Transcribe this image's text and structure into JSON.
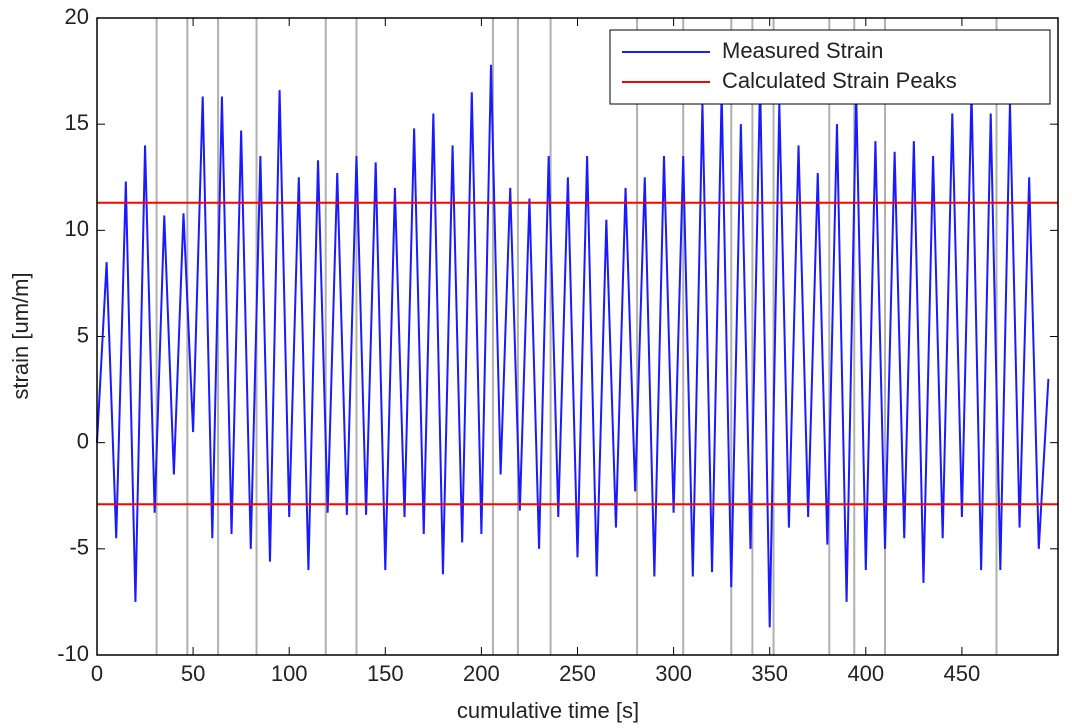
{
  "chart_data": {
    "type": "line",
    "xlabel": "cumulative time [s]",
    "ylabel": "strain [um/m]",
    "x": [
      0,
      5,
      10,
      15,
      20,
      25,
      30,
      35,
      40,
      45,
      50,
      55,
      60,
      65,
      70,
      75,
      80,
      85,
      90,
      95,
      100,
      105,
      110,
      115,
      120,
      125,
      130,
      135,
      140,
      145,
      150,
      155,
      160,
      165,
      170,
      175,
      180,
      185,
      190,
      195,
      200,
      205,
      210,
      215,
      220,
      225,
      230,
      235,
      240,
      245,
      250,
      255,
      260,
      265,
      270,
      275,
      280,
      285,
      290,
      295,
      300,
      305,
      310,
      315,
      320,
      325,
      330,
      335,
      340,
      345,
      350,
      355,
      360,
      365,
      370,
      375,
      380,
      385,
      390,
      395,
      400,
      405,
      410,
      415,
      420,
      425,
      430,
      435,
      440,
      445,
      450,
      455,
      460,
      465,
      470,
      475,
      480,
      485,
      490,
      495
    ],
    "series": [
      {
        "name": "Measured Strain",
        "color": "#1a1aff",
        "values": [
          0,
          8.5,
          -4.5,
          12.3,
          -7.5,
          14,
          -3.3,
          10.7,
          -1.5,
          10.8,
          0.5,
          16.3,
          -4.5,
          16.3,
          -4.3,
          14.7,
          -5,
          13.5,
          -5.6,
          16.6,
          -3.5,
          12.5,
          -6,
          13.3,
          -3.3,
          12.7,
          -3.4,
          13.5,
          -3.4,
          13.2,
          -6,
          12,
          -3.5,
          14.8,
          -4.3,
          15.5,
          -6.2,
          14,
          -4.7,
          16.5,
          -4.3,
          17.8,
          -1.5,
          12,
          -3.2,
          11.5,
          -5,
          13.5,
          -3.5,
          12.5,
          -5.4,
          13.5,
          -6.3,
          10.5,
          -4,
          12,
          -2.3,
          12.5,
          -6.3,
          13.5,
          -3.3,
          13.5,
          -6.3,
          16,
          -6.1,
          16.5,
          -6.8,
          15,
          -5,
          17,
          -8.7,
          16,
          -4,
          14,
          -3.5,
          12.7,
          -4.8,
          15,
          -7.5,
          16.5,
          -6,
          14.2,
          -5,
          13.7,
          -4.5,
          14.2,
          -6.6,
          13.5,
          -4.5,
          15.5,
          -3.5,
          16.5,
          -6,
          15.5,
          -6,
          16,
          -4,
          12.5,
          -5,
          3
        ]
      }
    ],
    "reference_lines": {
      "name": "Calculated Strain Peaks",
      "color": "#ff0000",
      "values": [
        11.3,
        -2.9
      ]
    },
    "vertical_lines": {
      "color": "#b0b0b0",
      "values": [
        31,
        47,
        63,
        83,
        119,
        135,
        206,
        219,
        236,
        281,
        305,
        330,
        341,
        352,
        381,
        394,
        410,
        468
      ]
    },
    "xlim": [
      0,
      500
    ],
    "xticks": [
      0,
      50,
      100,
      150,
      200,
      250,
      300,
      350,
      400,
      450
    ],
    "ylim": [
      -10,
      20
    ],
    "yticks": [
      -10,
      -5,
      0,
      5,
      10,
      15,
      20
    ],
    "legend": "upper right"
  }
}
